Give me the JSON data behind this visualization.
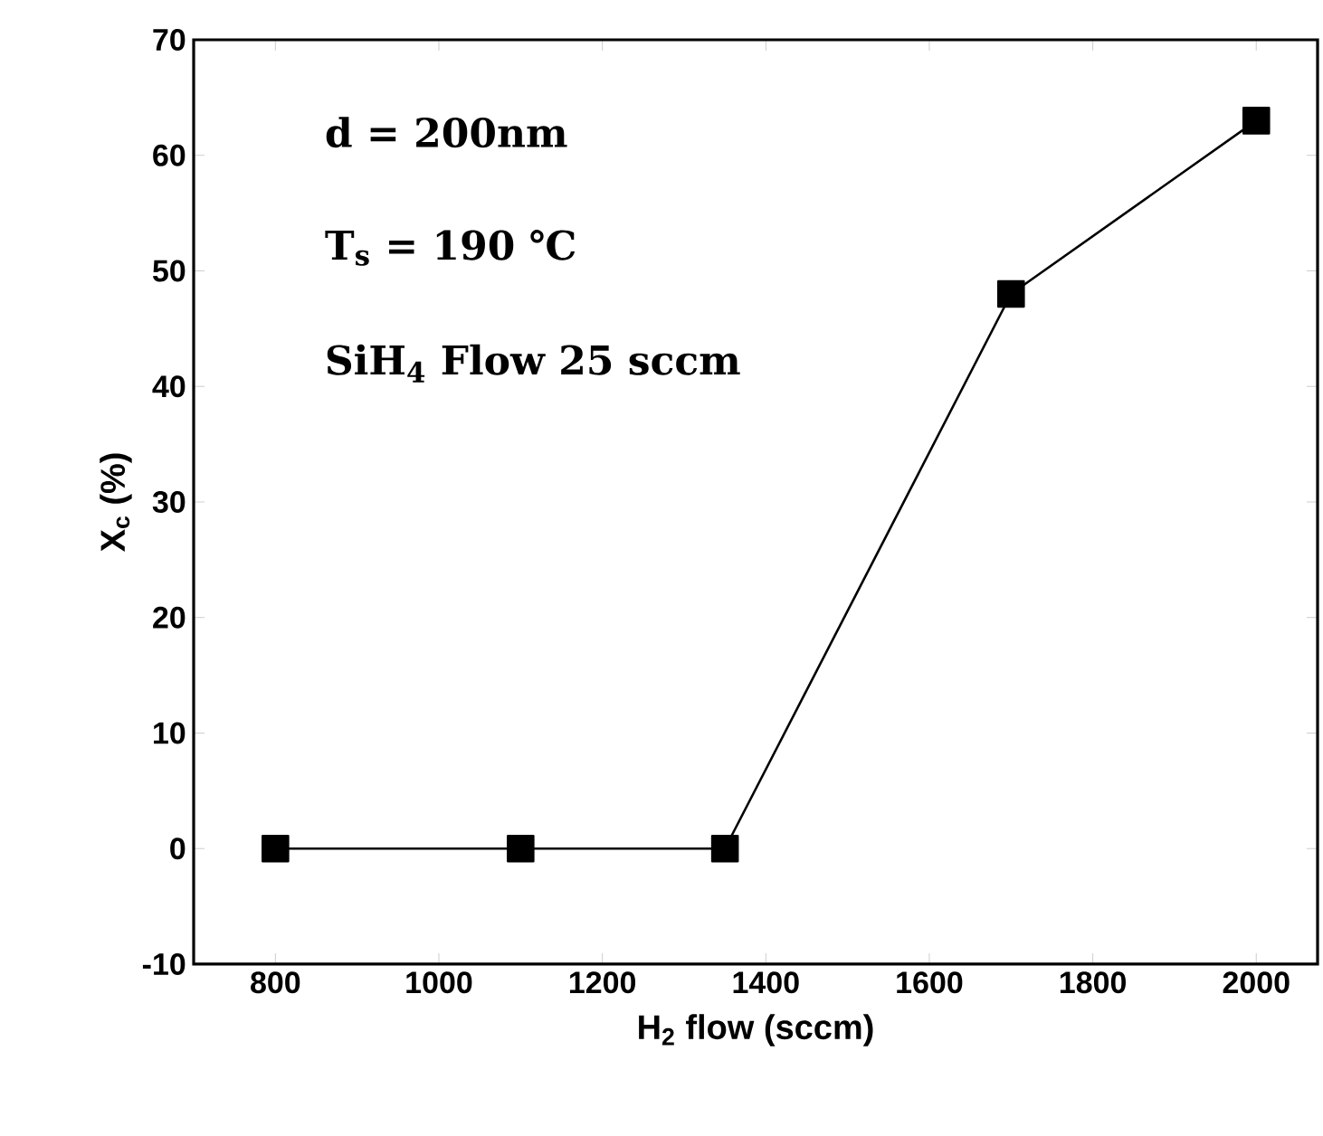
{
  "chart_data": {
    "type": "line",
    "xlabel": "H$_{2}$ flow (sccm)",
    "ylabel": "X$_{c}$ (%)",
    "x": [
      800,
      1100,
      1350,
      1700,
      2000
    ],
    "series": [
      {
        "color": "#000000",
        "values": [
          0,
          0,
          0,
          48,
          63
        ]
      }
    ],
    "xlim": [
      700,
      2075
    ],
    "xticks": [
      800,
      1000,
      1200,
      1400,
      1600,
      1800,
      2000
    ],
    "ylim": [
      -10,
      70
    ],
    "yticks": [
      -10,
      0,
      10,
      20,
      30,
      40,
      50,
      60,
      70
    ],
    "marker": "square",
    "line_style": "solid",
    "grid": false,
    "annotations": [
      "d = 200nm",
      "T$_{s}$ = 190 ℃",
      "SiH$_{4}$ Flow 25 sccm"
    ]
  }
}
